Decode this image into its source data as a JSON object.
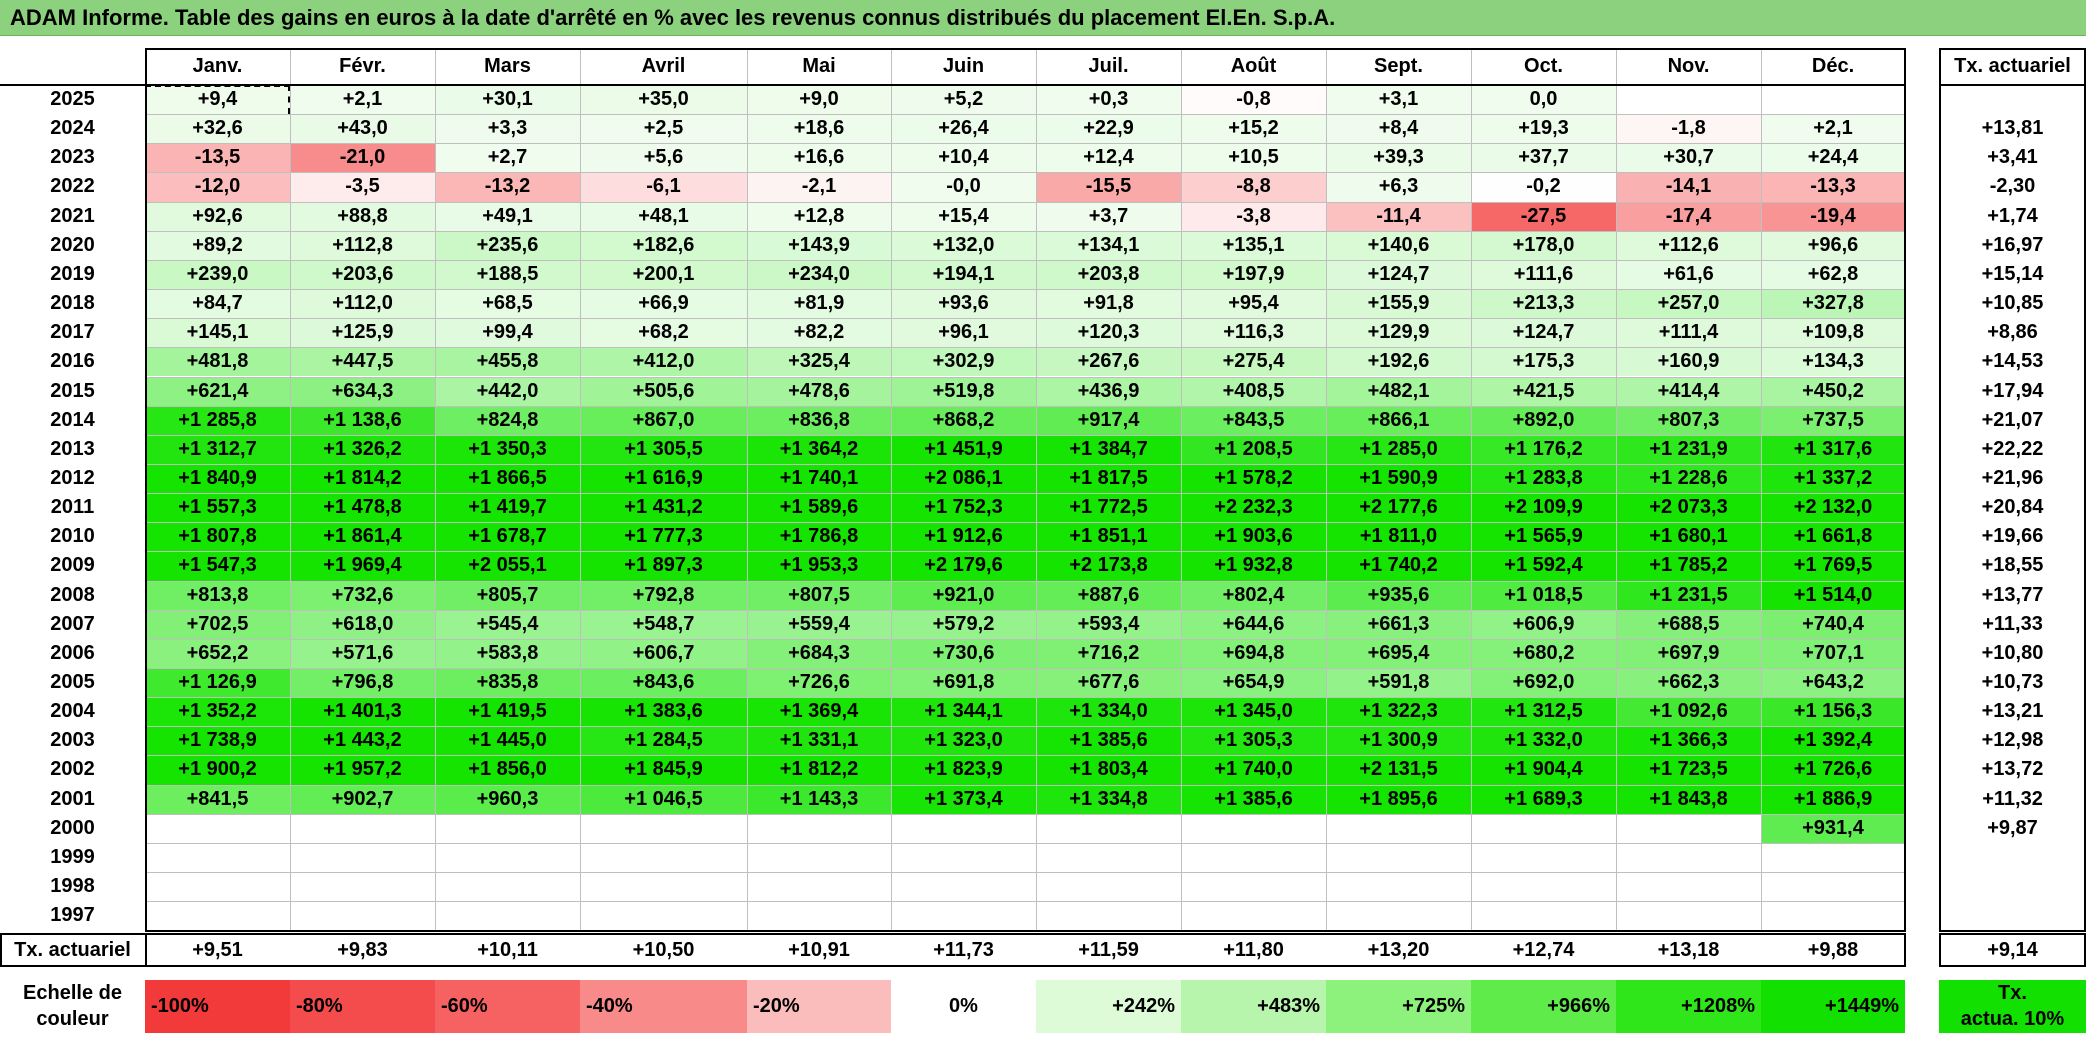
{
  "title": "ADAM Informe. Table des gains en euros à la date d'arrêté en % avec les revenus connus distribués du placement El.En. S.p.A.",
  "months": [
    "Janv.",
    "Févr.",
    "Mars",
    "Avril",
    "Mai",
    "Juin",
    "Juil.",
    "Août",
    "Sept.",
    "Oct.",
    "Nov.",
    "Déc."
  ],
  "rate_header": "Tx. actuariel",
  "rows": [
    {
      "year": "2025",
      "values": [
        "+9,4",
        "+2,1",
        "+30,1",
        "+35,0",
        "+9,0",
        "+5,2",
        "+0,3",
        "-0,8",
        "+3,1",
        "0,0",
        "",
        ""
      ],
      "rate": ""
    },
    {
      "year": "2024",
      "values": [
        "+32,6",
        "+43,0",
        "+3,3",
        "+2,5",
        "+18,6",
        "+26,4",
        "+22,9",
        "+15,2",
        "+8,4",
        "+19,3",
        "-1,8",
        "+2,1"
      ],
      "rate": "+13,81"
    },
    {
      "year": "2023",
      "values": [
        "-13,5",
        "-21,0",
        "+2,7",
        "+5,6",
        "+16,6",
        "+10,4",
        "+12,4",
        "+10,5",
        "+39,3",
        "+37,7",
        "+30,7",
        "+24,4"
      ],
      "rate": "+3,41"
    },
    {
      "year": "2022",
      "values": [
        "-12,0",
        "-3,5",
        "-13,2",
        "-6,1",
        "-2,1",
        "-0,0",
        "-15,5",
        "-8,8",
        "+6,3",
        "-0,2",
        "-14,1",
        "-13,3"
      ],
      "rate": "-2,30"
    },
    {
      "year": "2021",
      "values": [
        "+92,6",
        "+88,8",
        "+49,1",
        "+48,1",
        "+12,8",
        "+15,4",
        "+3,7",
        "-3,8",
        "-11,4",
        "-27,5",
        "-17,4",
        "-19,4"
      ],
      "rate": "+1,74"
    },
    {
      "year": "2020",
      "values": [
        "+89,2",
        "+112,8",
        "+235,6",
        "+182,6",
        "+143,9",
        "+132,0",
        "+134,1",
        "+135,1",
        "+140,6",
        "+178,0",
        "+112,6",
        "+96,6"
      ],
      "rate": "+16,97"
    },
    {
      "year": "2019",
      "values": [
        "+239,0",
        "+203,6",
        "+188,5",
        "+200,1",
        "+234,0",
        "+194,1",
        "+203,8",
        "+197,9",
        "+124,7",
        "+111,6",
        "+61,6",
        "+62,8"
      ],
      "rate": "+15,14"
    },
    {
      "year": "2018",
      "values": [
        "+84,7",
        "+112,0",
        "+68,5",
        "+66,9",
        "+81,9",
        "+93,6",
        "+91,8",
        "+95,4",
        "+155,9",
        "+213,3",
        "+257,0",
        "+327,8"
      ],
      "rate": "+10,85"
    },
    {
      "year": "2017",
      "values": [
        "+145,1",
        "+125,9",
        "+99,4",
        "+68,2",
        "+82,2",
        "+96,1",
        "+120,3",
        "+116,3",
        "+129,9",
        "+124,7",
        "+111,4",
        "+109,8"
      ],
      "rate": "+8,86"
    },
    {
      "year": "2016",
      "values": [
        "+481,8",
        "+447,5",
        "+455,8",
        "+412,0",
        "+325,4",
        "+302,9",
        "+267,6",
        "+275,4",
        "+192,6",
        "+175,3",
        "+160,9",
        "+134,3"
      ],
      "rate": "+14,53"
    },
    {
      "year": "2015",
      "values": [
        "+621,4",
        "+634,3",
        "+442,0",
        "+505,6",
        "+478,6",
        "+519,8",
        "+436,9",
        "+408,5",
        "+482,1",
        "+421,5",
        "+414,4",
        "+450,2"
      ],
      "rate": "+17,94"
    },
    {
      "year": "2014",
      "values": [
        "+1 285,8",
        "+1 138,6",
        "+824,8",
        "+867,0",
        "+836,8",
        "+868,2",
        "+917,4",
        "+843,5",
        "+866,1",
        "+892,0",
        "+807,3",
        "+737,5"
      ],
      "rate": "+21,07"
    },
    {
      "year": "2013",
      "values": [
        "+1 312,7",
        "+1 326,2",
        "+1 350,3",
        "+1 305,5",
        "+1 364,2",
        "+1 451,9",
        "+1 384,7",
        "+1 208,5",
        "+1 285,0",
        "+1 176,2",
        "+1 231,9",
        "+1 317,6"
      ],
      "rate": "+22,22"
    },
    {
      "year": "2012",
      "values": [
        "+1 840,9",
        "+1 814,2",
        "+1 866,5",
        "+1 616,9",
        "+1 740,1",
        "+2 086,1",
        "+1 817,5",
        "+1 578,2",
        "+1 590,9",
        "+1 283,8",
        "+1 228,6",
        "+1 337,2"
      ],
      "rate": "+21,96"
    },
    {
      "year": "2011",
      "values": [
        "+1 557,3",
        "+1 478,8",
        "+1 419,7",
        "+1 431,2",
        "+1 589,6",
        "+1 752,3",
        "+1 772,5",
        "+2 232,3",
        "+2 177,6",
        "+2 109,9",
        "+2 073,3",
        "+2 132,0"
      ],
      "rate": "+20,84"
    },
    {
      "year": "2010",
      "values": [
        "+1 807,8",
        "+1 861,4",
        "+1 678,7",
        "+1 777,3",
        "+1 786,8",
        "+1 912,6",
        "+1 851,1",
        "+1 903,6",
        "+1 811,0",
        "+1 565,9",
        "+1 680,1",
        "+1 661,8"
      ],
      "rate": "+19,66"
    },
    {
      "year": "2009",
      "values": [
        "+1 547,3",
        "+1 969,4",
        "+2 055,1",
        "+1 897,3",
        "+1 953,3",
        "+2 179,6",
        "+2 173,8",
        "+1 932,8",
        "+1 740,2",
        "+1 592,4",
        "+1 785,2",
        "+1 769,5"
      ],
      "rate": "+18,55"
    },
    {
      "year": "2008",
      "values": [
        "+813,8",
        "+732,6",
        "+805,7",
        "+792,8",
        "+807,5",
        "+921,0",
        "+887,6",
        "+802,4",
        "+935,6",
        "+1 018,5",
        "+1 231,5",
        "+1 514,0"
      ],
      "rate": "+13,77"
    },
    {
      "year": "2007",
      "values": [
        "+702,5",
        "+618,0",
        "+545,4",
        "+548,7",
        "+559,4",
        "+579,2",
        "+593,4",
        "+644,6",
        "+661,3",
        "+606,9",
        "+688,5",
        "+740,4"
      ],
      "rate": "+11,33"
    },
    {
      "year": "2006",
      "values": [
        "+652,2",
        "+571,6",
        "+583,8",
        "+606,7",
        "+684,3",
        "+730,6",
        "+716,2",
        "+694,8",
        "+695,4",
        "+680,2",
        "+697,9",
        "+707,1"
      ],
      "rate": "+10,80"
    },
    {
      "year": "2005",
      "values": [
        "+1 126,9",
        "+796,8",
        "+835,8",
        "+843,6",
        "+726,6",
        "+691,8",
        "+677,6",
        "+654,9",
        "+591,8",
        "+692,0",
        "+662,3",
        "+643,2"
      ],
      "rate": "+10,73"
    },
    {
      "year": "2004",
      "values": [
        "+1 352,2",
        "+1 401,3",
        "+1 419,5",
        "+1 383,6",
        "+1 369,4",
        "+1 344,1",
        "+1 334,0",
        "+1 345,0",
        "+1 322,3",
        "+1 312,5",
        "+1 092,6",
        "+1 156,3"
      ],
      "rate": "+13,21"
    },
    {
      "year": "2003",
      "values": [
        "+1 738,9",
        "+1 443,2",
        "+1 445,0",
        "+1 284,5",
        "+1 331,1",
        "+1 323,0",
        "+1 385,6",
        "+1 305,3",
        "+1 300,9",
        "+1 332,0",
        "+1 366,3",
        "+1 392,4"
      ],
      "rate": "+12,98"
    },
    {
      "year": "2002",
      "values": [
        "+1 900,2",
        "+1 957,2",
        "+1 856,0",
        "+1 845,9",
        "+1 812,2",
        "+1 823,9",
        "+1 803,4",
        "+1 740,0",
        "+2 131,5",
        "+1 904,4",
        "+1 723,5",
        "+1 726,6"
      ],
      "rate": "+13,72"
    },
    {
      "year": "2001",
      "values": [
        "+841,5",
        "+902,7",
        "+960,3",
        "+1 046,5",
        "+1 143,3",
        "+1 373,4",
        "+1 334,8",
        "+1 385,6",
        "+1 895,6",
        "+1 689,3",
        "+1 843,8",
        "+1 886,9"
      ],
      "rate": "+11,32"
    },
    {
      "year": "2000",
      "values": [
        "",
        "",
        "",
        "",
        "",
        "",
        "",
        "",
        "",
        "",
        "",
        "+931,4"
      ],
      "rate": "+9,87"
    },
    {
      "year": "1999",
      "values": [
        "",
        "",
        "",
        "",
        "",
        "",
        "",
        "",
        "",
        "",
        "",
        ""
      ],
      "rate": ""
    },
    {
      "year": "1998",
      "values": [
        "",
        "",
        "",
        "",
        "",
        "",
        "",
        "",
        "",
        "",
        "",
        ""
      ],
      "rate": ""
    },
    {
      "year": "1997",
      "values": [
        "",
        "",
        "",
        "",
        "",
        "",
        "",
        "",
        "",
        "",
        "",
        ""
      ],
      "rate": ""
    }
  ],
  "footer": {
    "label": "Tx. actuariel",
    "values": [
      "+9,51",
      "+9,83",
      "+10,11",
      "+10,50",
      "+10,91",
      "+11,73",
      "+11,59",
      "+11,80",
      "+13,20",
      "+12,74",
      "+13,18",
      "+9,88"
    ],
    "total": "+9,14"
  },
  "legend": {
    "label_line1": "Echelle de",
    "label_line2": "couleur",
    "items": [
      {
        "text": "-100%",
        "color": "#f23a3a",
        "align": "left"
      },
      {
        "text": "-80%",
        "color": "#f44c4c",
        "align": "left"
      },
      {
        "text": "-60%",
        "color": "#f66161",
        "align": "left"
      },
      {
        "text": "-40%",
        "color": "#f98a8a",
        "align": "left"
      },
      {
        "text": "-20%",
        "color": "#fbbcbc",
        "align": "left"
      },
      {
        "text": "0%",
        "color": "#ffffff",
        "align": "center"
      },
      {
        "text": "+242%",
        "color": "#dcfbd6",
        "align": "right"
      },
      {
        "text": "+483%",
        "color": "#b6f5ab",
        "align": "right"
      },
      {
        "text": "+725%",
        "color": "#8cf27b",
        "align": "right"
      },
      {
        "text": "+966%",
        "color": "#5fec4b",
        "align": "right"
      },
      {
        "text": "+1208%",
        "color": "#2ee61a",
        "align": "right"
      },
      {
        "text": "+1449%",
        "color": "#12e000",
        "align": "right"
      }
    ],
    "rate_line1": "Tx.",
    "rate_line2": "actua. 10%",
    "rate_color": "#12e000"
  }
}
